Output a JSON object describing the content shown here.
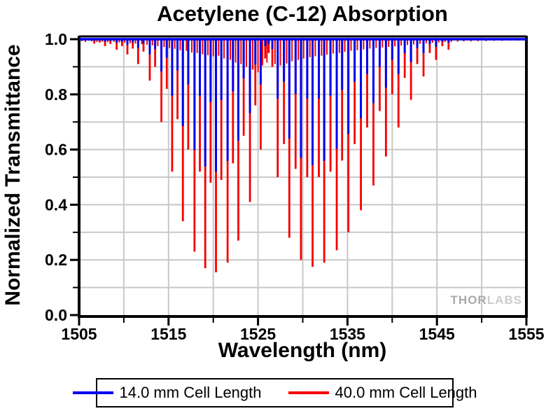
{
  "watermark": {
    "part1": "THOR",
    "part2": "LABS"
  },
  "chart_data": {
    "type": "line",
    "title": "Acetylene (C-12) Absorption",
    "xlabel": "Wavelength (nm)",
    "ylabel": "Normalized Transmittance",
    "xlim": [
      1505,
      1555
    ],
    "ylim": [
      0.0,
      1.0
    ],
    "grid": "on",
    "grid_color": "#c8c8c8",
    "legend_position": "bottom",
    "x_major_ticks": [
      1505,
      1515,
      1525,
      1535,
      1545,
      1555
    ],
    "x_major_tick_labels": [
      "1505",
      "1515",
      "1525",
      "1535",
      "1545",
      "1555"
    ],
    "x_minor_ticks": [
      1510,
      1520,
      1530,
      1540,
      1550
    ],
    "x_gridlines": [
      1510,
      1515,
      1520,
      1525,
      1530,
      1535,
      1540,
      1545,
      1550
    ],
    "y_major_ticks": [
      0.0,
      0.2,
      0.4,
      0.6,
      0.8,
      1.0
    ],
    "y_major_tick_labels": [
      "0.0",
      "0.2",
      "0.4",
      "0.6",
      "0.8",
      "1.0"
    ],
    "y_minor_ticks": [
      0.1,
      0.3,
      0.5,
      0.7,
      0.9
    ],
    "y_gridlines": [
      0.1,
      0.2,
      0.3,
      0.4,
      0.5,
      0.6,
      0.7,
      0.8,
      0.9
    ],
    "series": [
      {
        "name": "14.0 mm Cell Length",
        "color": "#0000ee",
        "baseline": 1.0
      },
      {
        "name": "40.0 mm Cell Length",
        "color": "#f50000",
        "baseline": 1.0
      }
    ],
    "absorption_lines_note": "each entry = [wavelength_nm, transmittance_14mm, transmittance_40mm]",
    "absorption_lines": [
      [
        1506.1,
        0.998,
        0.995
      ],
      [
        1506.7,
        0.994,
        0.984
      ],
      [
        1507.3,
        0.996,
        0.988
      ],
      [
        1507.9,
        0.991,
        0.975
      ],
      [
        1508.5,
        0.994,
        0.983
      ],
      [
        1509.2,
        0.987,
        0.962
      ],
      [
        1509.8,
        0.991,
        0.975
      ],
      [
        1510.4,
        0.98,
        0.945
      ],
      [
        1511.0,
        0.988,
        0.966
      ],
      [
        1511.6,
        0.968,
        0.91
      ],
      [
        1512.2,
        0.984,
        0.955
      ],
      [
        1512.9,
        0.945,
        0.85
      ],
      [
        1513.5,
        0.964,
        0.9
      ],
      [
        1514.2,
        0.883,
        0.7
      ],
      [
        1514.8,
        0.933,
        0.82
      ],
      [
        1515.4,
        0.795,
        0.52
      ],
      [
        1516.0,
        0.887,
        0.71
      ],
      [
        1516.6,
        0.685,
        0.34
      ],
      [
        1517.2,
        0.836,
        0.6
      ],
      [
        1517.9,
        0.598,
        0.23
      ],
      [
        1518.5,
        0.795,
        0.52
      ],
      [
        1519.1,
        0.538,
        0.17
      ],
      [
        1519.7,
        0.773,
        0.48
      ],
      [
        1520.3,
        0.52,
        0.155
      ],
      [
        1520.9,
        0.779,
        0.49
      ],
      [
        1521.6,
        0.559,
        0.19
      ],
      [
        1522.2,
        0.811,
        0.55
      ],
      [
        1522.8,
        0.632,
        0.27
      ],
      [
        1523.4,
        0.858,
        0.65
      ],
      [
        1524.1,
        0.732,
        0.41
      ],
      [
        1524.7,
        0.908,
        0.76
      ],
      [
        1525.3,
        0.836,
        0.6
      ],
      [
        1525.8,
        0.975,
        0.93
      ],
      [
        1526.2,
        0.983,
        0.95
      ],
      [
        1526.6,
        0.964,
        0.9
      ],
      [
        1527.2,
        0.785,
        0.5
      ],
      [
        1527.9,
        0.846,
        0.62
      ],
      [
        1528.5,
        0.64,
        0.28
      ],
      [
        1529.2,
        0.801,
        0.53
      ],
      [
        1529.8,
        0.57,
        0.2
      ],
      [
        1530.5,
        0.785,
        0.5
      ],
      [
        1531.1,
        0.543,
        0.175
      ],
      [
        1531.8,
        0.785,
        0.5
      ],
      [
        1532.4,
        0.559,
        0.19
      ],
      [
        1533.1,
        0.795,
        0.52
      ],
      [
        1533.8,
        0.603,
        0.235
      ],
      [
        1534.4,
        0.816,
        0.56
      ],
      [
        1535.1,
        0.656,
        0.3
      ],
      [
        1535.8,
        0.846,
        0.62
      ],
      [
        1536.5,
        0.713,
        0.38
      ],
      [
        1537.2,
        0.874,
        0.68
      ],
      [
        1537.9,
        0.768,
        0.47
      ],
      [
        1538.6,
        0.9,
        0.74
      ],
      [
        1539.3,
        0.824,
        0.575
      ],
      [
        1540.0,
        0.925,
        0.8
      ],
      [
        1540.7,
        0.874,
        0.68
      ],
      [
        1541.4,
        0.949,
        0.86
      ],
      [
        1542.1,
        0.917,
        0.78
      ],
      [
        1542.8,
        0.968,
        0.91
      ],
      [
        1543.5,
        0.95,
        0.865
      ],
      [
        1544.2,
        0.982,
        0.95
      ],
      [
        1544.9,
        0.973,
        0.925
      ],
      [
        1545.6,
        0.991,
        0.975
      ],
      [
        1546.3,
        0.987,
        0.962
      ]
    ],
    "weak_lines_note": "weak hot-band lines visible only in the 40 mm trace: [wavelength_nm, transmittance_40mm]",
    "weak_lines": [
      [
        1505.3,
        0.993
      ],
      [
        1505.7,
        0.99
      ],
      [
        1506.4,
        0.992
      ],
      [
        1507.0,
        0.99
      ],
      [
        1507.6,
        0.991
      ],
      [
        1508.2,
        0.989
      ],
      [
        1508.9,
        0.99
      ],
      [
        1509.5,
        0.988
      ],
      [
        1510.1,
        0.987
      ],
      [
        1510.7,
        0.985
      ],
      [
        1511.3,
        0.984
      ],
      [
        1512.0,
        0.982
      ],
      [
        1512.6,
        0.98
      ],
      [
        1513.2,
        0.978
      ],
      [
        1513.8,
        0.975
      ],
      [
        1514.5,
        0.972
      ],
      [
        1515.1,
        0.968
      ],
      [
        1515.7,
        0.965
      ],
      [
        1516.3,
        0.96
      ],
      [
        1517.0,
        0.958
      ],
      [
        1517.6,
        0.952
      ],
      [
        1518.2,
        0.95
      ],
      [
        1518.8,
        0.945
      ],
      [
        1519.4,
        0.942
      ],
      [
        1520.0,
        0.938
      ],
      [
        1520.6,
        0.94
      ],
      [
        1521.2,
        0.93
      ],
      [
        1521.9,
        0.925
      ],
      [
        1522.5,
        0.915
      ],
      [
        1523.1,
        0.91
      ],
      [
        1523.7,
        0.9
      ],
      [
        1524.4,
        0.89
      ],
      [
        1525.0,
        0.88
      ],
      [
        1525.5,
        0.905
      ],
      [
        1526.0,
        0.915
      ],
      [
        1526.9,
        0.91
      ],
      [
        1527.5,
        0.905
      ],
      [
        1528.2,
        0.912
      ],
      [
        1528.8,
        0.92
      ],
      [
        1529.5,
        0.925
      ],
      [
        1530.1,
        0.93
      ],
      [
        1530.8,
        0.935
      ],
      [
        1531.4,
        0.938
      ],
      [
        1532.1,
        0.94
      ],
      [
        1532.7,
        0.944
      ],
      [
        1533.4,
        0.948
      ],
      [
        1534.1,
        0.95
      ],
      [
        1534.7,
        0.954
      ],
      [
        1535.4,
        0.958
      ],
      [
        1536.1,
        0.96
      ],
      [
        1536.8,
        0.963
      ],
      [
        1537.5,
        0.966
      ],
      [
        1538.2,
        0.968
      ],
      [
        1538.9,
        0.97
      ],
      [
        1539.6,
        0.972
      ],
      [
        1540.3,
        0.974
      ],
      [
        1541.0,
        0.977
      ],
      [
        1541.7,
        0.979
      ],
      [
        1542.4,
        0.981
      ],
      [
        1543.1,
        0.983
      ],
      [
        1543.8,
        0.985
      ],
      [
        1544.5,
        0.987
      ],
      [
        1545.2,
        0.988
      ],
      [
        1545.9,
        0.99
      ],
      [
        1546.6,
        0.99
      ],
      [
        1547.3,
        0.991
      ],
      [
        1548.0,
        0.992
      ],
      [
        1548.8,
        0.992
      ],
      [
        1549.6,
        0.993
      ],
      [
        1550.5,
        0.993
      ],
      [
        1551.4,
        0.994
      ],
      [
        1552.3,
        0.994
      ],
      [
        1553.2,
        0.995
      ],
      [
        1554.1,
        0.995
      ],
      [
        1554.8,
        0.996
      ]
    ]
  }
}
